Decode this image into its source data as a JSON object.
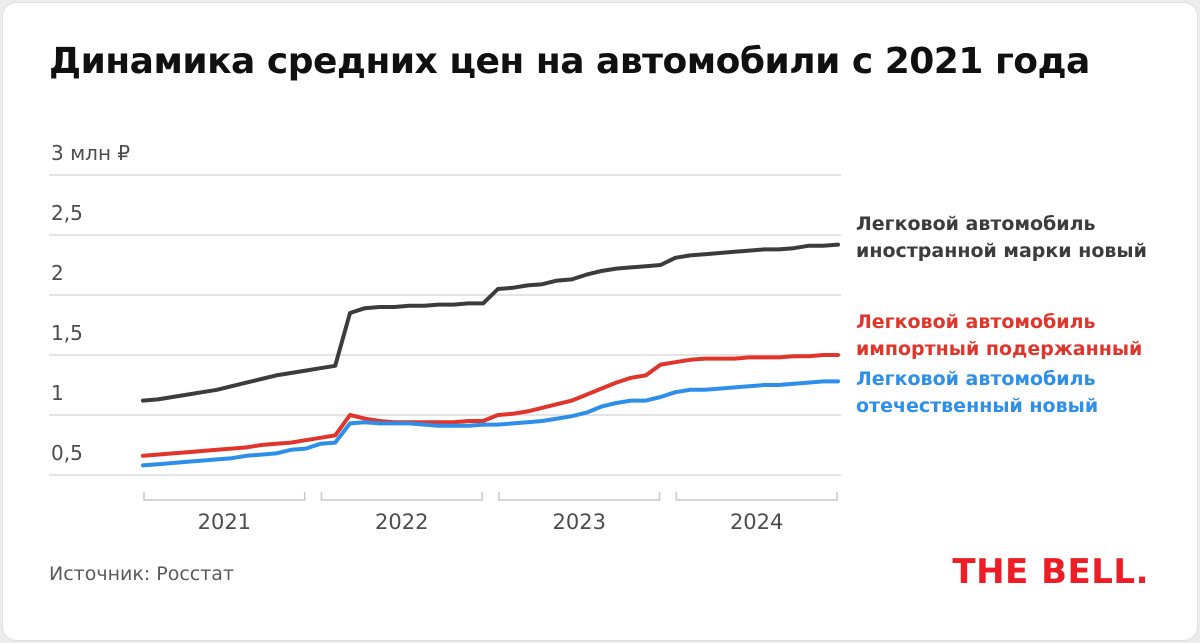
{
  "card": {
    "title": "Динамика средних цен на автомобили с 2021 года",
    "source": "Источник: Росстат",
    "logo": "THE BELL."
  },
  "colors": {
    "foreign_new": "#3c3c3c",
    "imported_used": "#e0352b",
    "domestic_new": "#2e8fe8",
    "grid": "#e4e4e4",
    "axis_text": "#4d4d4d",
    "bracket": "#c9c9c9",
    "logo_red": "#ee1c25"
  },
  "legend": [
    {
      "line1": "Легковой автомобиль",
      "line2": "иностранной марки новый",
      "color": "#3c3c3c"
    },
    {
      "line1": "Легковой автомобиль",
      "line2": "импортный подержанный",
      "color": "#e0352b"
    },
    {
      "line1": "Легковой автомобиль",
      "line2": "отечественный новый",
      "color": "#2e8fe8"
    }
  ],
  "chart_data": {
    "type": "line",
    "title": "Динамика средних цен на автомобили с 2021 года",
    "ylabel": "млн ₽",
    "ylim": [
      0.3,
      3.1
    ],
    "grid": true,
    "legend_position": "right",
    "x_months": 48,
    "years": [
      "2021",
      "2022",
      "2023",
      "2024"
    ],
    "y_ticks": [
      {
        "value": 3,
        "label": "3 млн ₽"
      },
      {
        "value": 2.5,
        "label": "2,5"
      },
      {
        "value": 2,
        "label": "2"
      },
      {
        "value": 1.5,
        "label": "1,5"
      },
      {
        "value": 1,
        "label": "1"
      },
      {
        "value": 0.5,
        "label": "0,5"
      }
    ],
    "series": [
      {
        "key": "foreign-new",
        "name": "Легковой автомобиль иностранной марки новый",
        "color": "#3c3c3c",
        "values": [
          1.12,
          1.13,
          1.15,
          1.17,
          1.19,
          1.21,
          1.24,
          1.27,
          1.3,
          1.33,
          1.35,
          1.37,
          1.39,
          1.41,
          1.85,
          1.89,
          1.9,
          1.9,
          1.91,
          1.91,
          1.92,
          1.92,
          1.93,
          1.93,
          2.05,
          2.06,
          2.08,
          2.09,
          2.12,
          2.13,
          2.17,
          2.2,
          2.22,
          2.23,
          2.24,
          2.25,
          2.31,
          2.33,
          2.34,
          2.35,
          2.36,
          2.37,
          2.38,
          2.38,
          2.39,
          2.41,
          2.41,
          2.42
        ]
      },
      {
        "key": "imported-used",
        "name": "Легковой автомобиль импортный подержанный",
        "color": "#e0352b",
        "values": [
          0.66,
          0.67,
          0.68,
          0.69,
          0.7,
          0.71,
          0.72,
          0.73,
          0.75,
          0.76,
          0.77,
          0.79,
          0.81,
          0.83,
          1.0,
          0.97,
          0.95,
          0.94,
          0.94,
          0.94,
          0.94,
          0.94,
          0.95,
          0.95,
          1.0,
          1.01,
          1.03,
          1.06,
          1.09,
          1.12,
          1.17,
          1.22,
          1.27,
          1.31,
          1.33,
          1.42,
          1.44,
          1.46,
          1.47,
          1.47,
          1.47,
          1.48,
          1.48,
          1.48,
          1.49,
          1.49,
          1.5,
          1.5
        ]
      },
      {
        "key": "domestic-new",
        "name": "Легковой автомобиль отечественный новый",
        "color": "#2e8fe8",
        "values": [
          0.58,
          0.59,
          0.6,
          0.61,
          0.62,
          0.63,
          0.64,
          0.66,
          0.67,
          0.68,
          0.71,
          0.72,
          0.76,
          0.77,
          0.93,
          0.94,
          0.93,
          0.93,
          0.93,
          0.92,
          0.91,
          0.91,
          0.91,
          0.92,
          0.92,
          0.93,
          0.94,
          0.95,
          0.97,
          0.99,
          1.02,
          1.07,
          1.1,
          1.12,
          1.12,
          1.15,
          1.19,
          1.21,
          1.21,
          1.22,
          1.23,
          1.24,
          1.25,
          1.25,
          1.26,
          1.27,
          1.28,
          1.28
        ]
      }
    ]
  }
}
